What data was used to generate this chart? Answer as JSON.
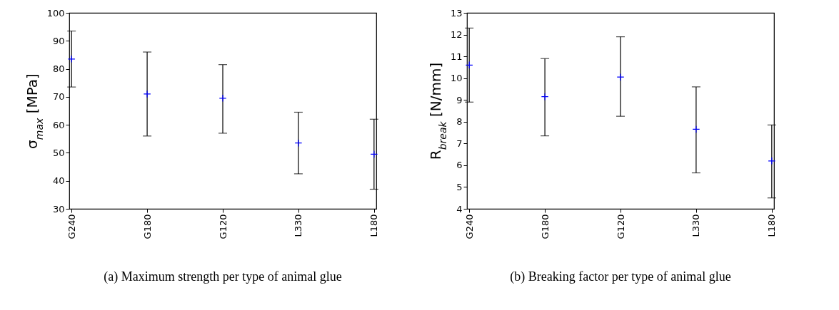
{
  "chart_data": [
    {
      "type": "scatter",
      "title": "(a) Maximum strength per type of animal glue",
      "ylabel": "σ$_{max}$  [MPa]",
      "categories": [
        "G240",
        "G180",
        "G120",
        "L330",
        "L180"
      ],
      "values": [
        83.5,
        71,
        69.5,
        53.5,
        49.5
      ],
      "errors": [
        [
          73.5,
          93.5
        ],
        [
          56,
          86
        ],
        [
          57,
          81.5
        ],
        [
          42.5,
          64.5
        ],
        [
          37,
          62
        ]
      ],
      "color": "#0000ff",
      "marker": "cross",
      "ylim": [
        30,
        100
      ],
      "yticks": [
        30,
        40,
        50,
        60,
        70,
        80,
        90,
        100
      ]
    },
    {
      "type": "scatter",
      "title": "(b) Breaking factor per type of animal glue",
      "ylabel": "R$_{break}$  [N/mm]",
      "categories": [
        "G240",
        "G180",
        "G120",
        "L330",
        "L180"
      ],
      "values": [
        10.6,
        9.15,
        10.05,
        7.65,
        6.2
      ],
      "errors": [
        [
          8.9,
          12.3
        ],
        [
          7.35,
          10.9
        ],
        [
          8.25,
          11.9
        ],
        [
          5.65,
          9.6
        ],
        [
          4.5,
          7.85
        ]
      ],
      "color": "#0000ff",
      "marker": "cross",
      "ylim": [
        4,
        13
      ],
      "yticks": [
        4,
        5,
        6,
        7,
        8,
        9,
        10,
        11,
        12,
        13
      ]
    }
  ]
}
